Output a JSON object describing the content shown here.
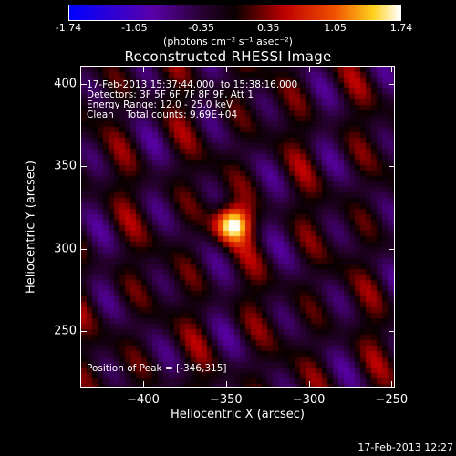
{
  "colorbar": {
    "ticks": [
      "-1.74",
      "-1.05",
      "-0.35",
      "0.35",
      "1.05",
      "1.74"
    ],
    "label": "(photons cm⁻² s⁻¹ asec⁻²)",
    "range": [
      -1.74,
      1.74
    ],
    "colormap": "blue-purple-red-yellow-white"
  },
  "title": "Reconstructed RHESSI Image",
  "info": {
    "time_range": "17-Feb-2013 15:37:44.000  to 15:38:16.000",
    "detectors": "Detectors: 3F 5F 6F 7F 8F 9F, Att 1",
    "energy": "Energy Range: 12.0 - 25.0 keV",
    "clean": "Clean    Total counts: 9.69E+04"
  },
  "peak": "Position of Peak = [-346,315]",
  "axes": {
    "xlabel": "Heliocentric X (arcsec)",
    "ylabel": "Heliocentric Y (arcsec)",
    "xticks": [
      "-400",
      "-350",
      "-300",
      "-250"
    ],
    "yticks": [
      "400",
      "350",
      "300",
      "250"
    ],
    "xrange": [
      -438,
      -248
    ],
    "yrange": [
      216,
      411
    ]
  },
  "chart_data": {
    "type": "heatmap",
    "title": "Reconstructed RHESSI Image",
    "xlabel": "Heliocentric X (arcsec)",
    "ylabel": "Heliocentric Y (arcsec)",
    "xlim": [
      -438,
      -248
    ],
    "ylim": [
      216,
      411
    ],
    "peak": [
      -346,
      315
    ],
    "value_range": [
      -1.74,
      1.74
    ]
  },
  "timestamp": "17-Feb-2013 12:27"
}
